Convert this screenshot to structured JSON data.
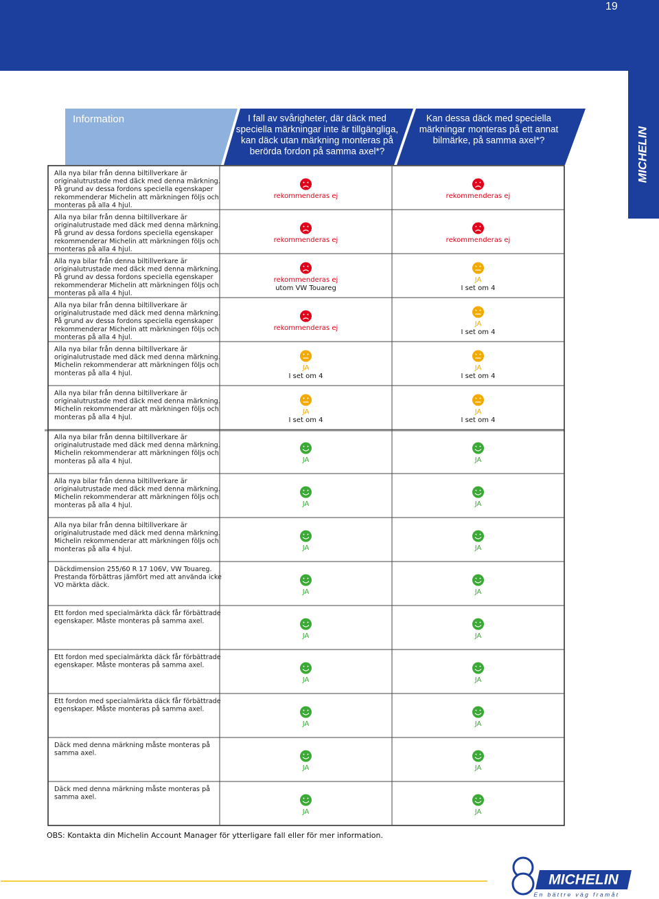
{
  "page_number": "19",
  "tab": {
    "text": "MICHELIN"
  },
  "header": {
    "col1": "Information",
    "col2": [
      "I fall av svårigheter, där däck med",
      "speciella märkningar inte är tillgängliga,",
      "kan däck utan märkning monteras på",
      "berörda fordon på samma axel*?"
    ],
    "col3": [
      "Kan dessa däck med speciella",
      "märkningar monteras på ett annat",
      "bilmärke, på samma axel*?"
    ]
  },
  "table": {
    "rows": [
      {
        "description": [
          "Alla nya bilar från denna biltillverkare är",
          "originalutrustade med däck med denna märkning.",
          "På grund av dessa fordons speciella egenskaper",
          "rekommenderar Michelin att märkningen följs och",
          "monteras på alla 4 hjul."
        ],
        "col2": {
          "color": "#e2001a",
          "label": "rekommenderas ej"
        },
        "col3": {
          "color": "#e2001a",
          "label": "rekommenderas ej"
        }
      },
      {
        "description": [
          "Alla nya bilar från denna biltillverkare är",
          "originalutrustade med däck med denna märkning.",
          "På grund av dessa fordons speciella egenskaper",
          "rekommenderar Michelin att märkningen följs och",
          "monteras på alla 4 hjul."
        ],
        "col2": {
          "color": "#e2001a",
          "label": "rekommenderas ej"
        },
        "col3": {
          "color": "#e2001a",
          "label": "rekommenderas ej"
        }
      },
      {
        "description": [
          "Alla nya bilar från denna biltillverkare är",
          "originalutrustade med däck med denna märkning.",
          "På grund av dessa fordons speciella egenskaper",
          "rekommenderar Michelin att märkningen följs och",
          "monteras på alla 4 hjul."
        ],
        "col2": {
          "color": "#e2001a",
          "label": "rekommenderas ej",
          "note": "utom VW Touareg"
        },
        "col3": {
          "color": "#f2a900",
          "label": "JA",
          "note": "I set om 4"
        }
      },
      {
        "description": [
          "Alla nya bilar från denna biltillverkare är",
          "originalutrustade med däck med denna märkning.",
          "På grund av dessa fordons speciella egenskaper",
          "rekommenderar Michelin att märkningen följs och",
          "monteras på alla 4 hjul."
        ],
        "col2": {
          "color": "#e2001a",
          "label": "rekommenderas ej"
        },
        "col3": {
          "color": "#f2a900",
          "label": "JA",
          "note": "I set om 4"
        }
      },
      {
        "description": [
          "Alla nya bilar från denna biltillverkare är",
          "originalutrustade med däck med denna märkning.",
          "Michelin rekommenderar att märkningen följs och",
          "monteras på alla 4 hjul."
        ],
        "col2": {
          "color": "#f2a900",
          "label": "JA",
          "note": "I set om 4"
        },
        "col3": {
          "color": "#f2a900",
          "label": "JA",
          "note": "I set om 4"
        }
      },
      {
        "description": [
          "Alla nya bilar från denna biltillverkare är",
          "originalutrustade med däck med denna märkning.",
          "Michelin rekommenderar att märkningen följs och",
          "monteras på alla 4 hjul."
        ],
        "col2": {
          "color": "#f2a900",
          "label": "JA",
          "note": "I set om 4"
        },
        "col3": {
          "color": "#f2a900",
          "label": "JA",
          "note": "I set om 4"
        }
      },
      {
        "description": [
          "Alla nya bilar från denna biltillverkare är",
          "originalutrustade med däck med denna märkning.",
          "Michelin rekommenderar att märkningen följs och",
          "monteras på alla 4 hjul."
        ],
        "col2": {
          "color": "#3aaa35",
          "label": "JA"
        },
        "col3": {
          "color": "#3aaa35",
          "label": "JA"
        }
      },
      {
        "description": [
          "Alla nya bilar från denna biltillverkare är",
          "originalutrustade med däck med denna märkning.",
          "Michelin rekommenderar att märkningen följs och",
          "monteras på alla 4 hjul."
        ],
        "col2": {
          "color": "#3aaa35",
          "label": "JA"
        },
        "col3": {
          "color": "#3aaa35",
          "label": "JA"
        }
      },
      {
        "description": [
          "Alla nya bilar från denna biltillverkare är",
          "originalutrustade med däck med denna märkning.",
          "Michelin rekommenderar att märkningen följs och",
          "monteras på alla 4 hjul."
        ],
        "col2": {
          "color": "#3aaa35",
          "label": "JA"
        },
        "col3": {
          "color": "#3aaa35",
          "label": "JA"
        }
      },
      {
        "description": [
          "Däckdimension 255/60 R 17 106V, VW Touareg.",
          "Prestanda förbättras jämfört med att använda icke",
          "VO märkta däck."
        ],
        "col2": {
          "color": "#3aaa35",
          "label": "JA"
        },
        "col3": {
          "color": "#3aaa35",
          "label": "JA"
        }
      },
      {
        "description": [
          "Ett fordon med specialmärkta däck får förbättrade",
          "egenskaper. Måste monteras på samma axel."
        ],
        "col2": {
          "color": "#3aaa35",
          "label": "JA"
        },
        "col3": {
          "color": "#3aaa35",
          "label": "JA"
        }
      },
      {
        "description": [
          "Ett fordon med specialmärkta däck får förbättrade",
          "egenskaper. Måste monteras på samma axel."
        ],
        "col2": {
          "color": "#3aaa35",
          "label": "JA"
        },
        "col3": {
          "color": "#3aaa35",
          "label": "JA"
        }
      },
      {
        "description": [
          "Ett fordon med specialmärkta däck får förbättrade",
          "egenskaper. Måste monteras på samma axel."
        ],
        "col2": {
          "color": "#3aaa35",
          "label": "JA"
        },
        "col3": {
          "color": "#3aaa35",
          "label": "JA"
        }
      },
      {
        "description": [
          "Däck med denna märkning måste monteras på",
          "samma axel."
        ],
        "col2": {
          "color": "#3aaa35",
          "label": "JA"
        },
        "col3": {
          "color": "#3aaa35",
          "label": "JA"
        }
      },
      {
        "description": [
          "Däck med denna märkning måste monteras på",
          "samma axel."
        ],
        "col2": {
          "color": "#3aaa35",
          "label": "JA"
        },
        "col3": {
          "color": "#3aaa35",
          "label": "JA"
        }
      }
    ]
  },
  "footer": {
    "note": "OBS: Kontakta din Michelin Account Manager för ytterligare fall eller för mer information."
  },
  "logo": {
    "text": "MICHELIN",
    "tagline": "En bättre väg framåt"
  }
}
